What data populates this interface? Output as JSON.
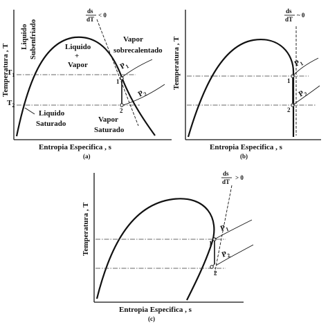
{
  "axes": {
    "ylabel": "Temperatura , T",
    "xlabel": "Entropia Especifica , s"
  },
  "panel_a": {
    "caption": "(a)",
    "slope": "< 0",
    "t1": "T",
    "t1_sub": "1",
    "t2": "T",
    "t2_sub": "2",
    "subcooled_1": "Liquido",
    "subcooled_2": "Subenfriado",
    "mix_1": "Liquido",
    "mix_2": "+",
    "mix_3": "Vapor",
    "superheated_1": "Vapor",
    "superheated_2": "sobrecalentado",
    "sat_liquid_1": "Liquido",
    "sat_liquid_2": "Saturado",
    "sat_vapor_1": "Vapor",
    "sat_vapor_2": "Saturado",
    "p1": "P",
    "p1_sub": "1",
    "p2": "P",
    "p2_sub": "2",
    "pt1": "1",
    "pt2": "2"
  },
  "panel_b": {
    "caption": "(b)",
    "slope": "~ 0",
    "p1": "P",
    "p1_sub": "1",
    "p2": "P",
    "p2_sub": "2",
    "pt1": "1",
    "pt2": "2"
  },
  "panel_c": {
    "caption": "(c)",
    "slope": "> 0",
    "p1": "P",
    "p1_sub": "1",
    "p2": "P",
    "p2_sub": "2",
    "pt1": "1",
    "pt2": "2"
  },
  "slope_fraction": {
    "num": "ds",
    "den": "dT"
  }
}
